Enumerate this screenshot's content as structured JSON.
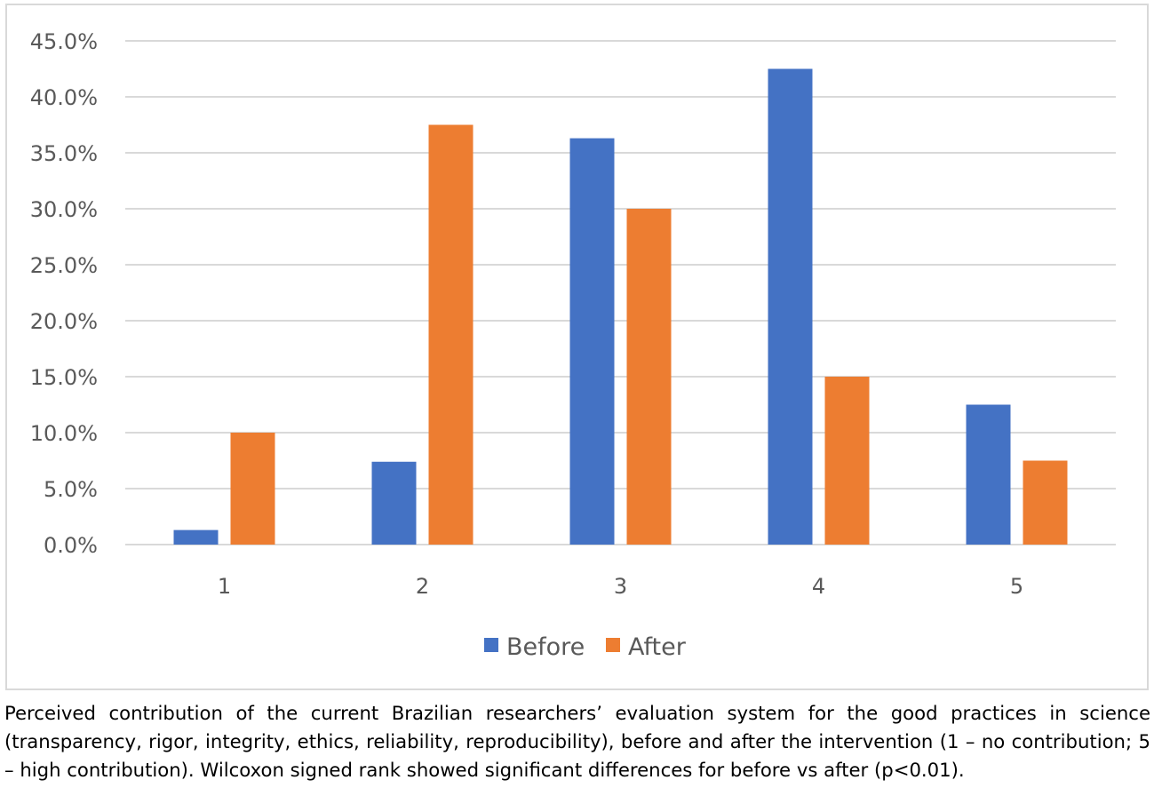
{
  "chart_data": {
    "type": "bar",
    "categories": [
      "1",
      "2",
      "3",
      "4",
      "5"
    ],
    "series": [
      {
        "name": "Before",
        "color": "#4472c4",
        "values": [
          1.3,
          7.4,
          36.3,
          42.5,
          12.5
        ]
      },
      {
        "name": "After",
        "color": "#ed7d31",
        "values": [
          10.0,
          37.5,
          30.0,
          15.0,
          7.5
        ]
      }
    ],
    "ylim": [
      0,
      45
    ],
    "yticks": [
      "0.0%",
      "5.0%",
      "10.0%",
      "15.0%",
      "20.0%",
      "25.0%",
      "30.0%",
      "35.0%",
      "40.0%",
      "45.0%"
    ],
    "grid": true,
    "legend_position": "bottom",
    "title": "",
    "xlabel": "",
    "ylabel": ""
  },
  "caption": "Perceived contribution of the current Brazilian researchers’ evaluation system for the good practices in science (transparency, rigor, integrity, ethics, reliability, reproducibility), before and after the intervention (1 – no contribution; 5 – high contribution). Wilcoxon signed rank showed significant differences for before vs after (p<0.01)."
}
